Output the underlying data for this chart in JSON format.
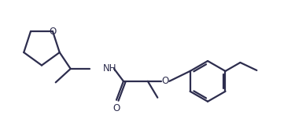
{
  "bg_color": "#ffffff",
  "line_color": "#2d2d4e",
  "line_width": 1.6,
  "font_size": 8.5,
  "fig_width": 3.75,
  "fig_height": 1.79,
  "dpi": 100,
  "xlim": [
    0,
    7.5
  ],
  "ylim": [
    0,
    3.5
  ]
}
